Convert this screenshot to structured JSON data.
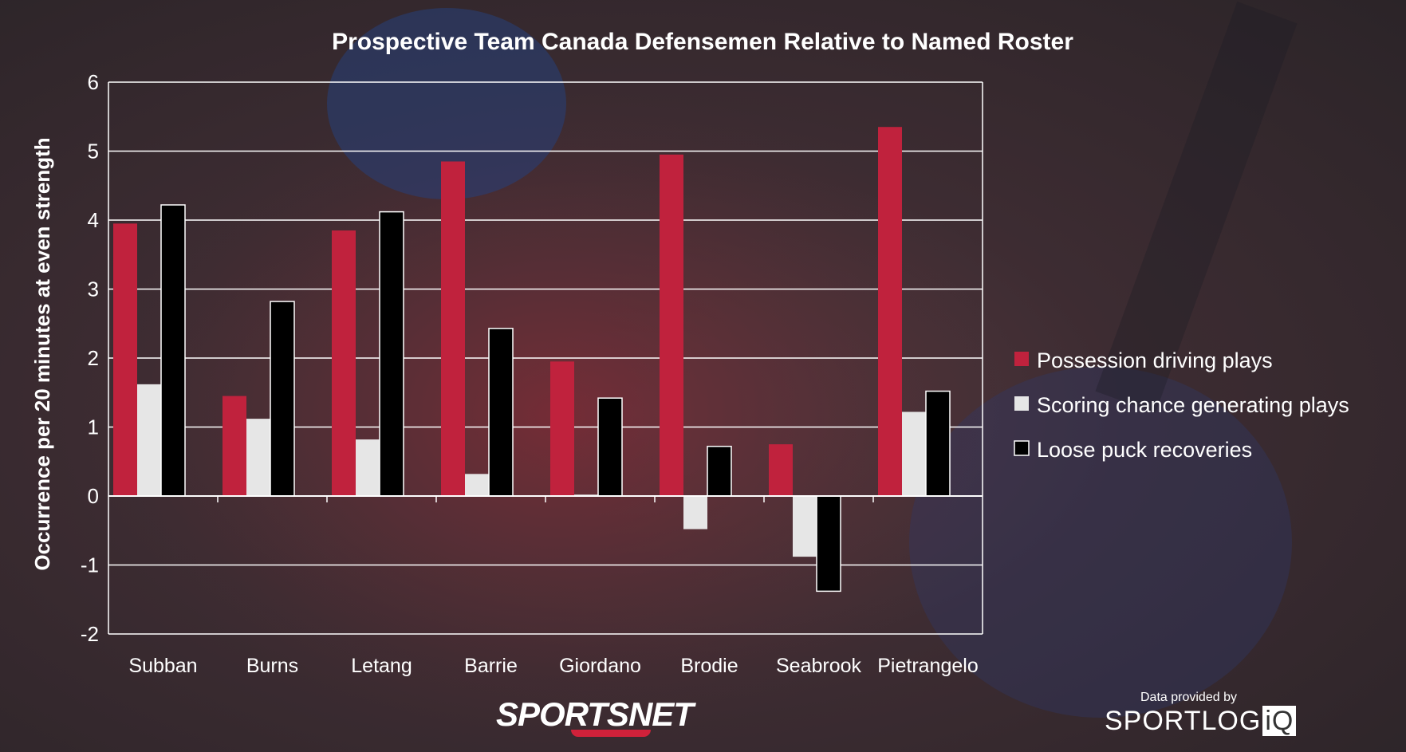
{
  "chart_data": {
    "type": "bar",
    "title": "Prospective Team Canada Defensemen Relative to Named Roster",
    "ylabel": "Occurrence per 20 minutes at even strength",
    "xlabel": "",
    "ylim": [
      -2,
      6
    ],
    "yticks": [
      6,
      5,
      4,
      3,
      2,
      1,
      0,
      -1,
      -2
    ],
    "grid": true,
    "legend_position": "right",
    "categories": [
      "Subban",
      "Burns",
      "Letang",
      "Barrie",
      "Giordano",
      "Brodie",
      "Seabrook",
      "Pietrangelo"
    ],
    "series": [
      {
        "name": "Possession driving plays",
        "color": "#c0223d",
        "values": [
          3.95,
          1.45,
          3.85,
          4.85,
          1.95,
          4.95,
          0.75,
          5.35
        ]
      },
      {
        "name": "Scoring chance generating plays",
        "color": "#e6e6e6",
        "values": [
          1.62,
          1.12,
          0.82,
          0.32,
          0.02,
          -0.48,
          -0.88,
          1.22
        ]
      },
      {
        "name": "Loose puck recoveries",
        "color": "#000000",
        "values": [
          4.22,
          2.82,
          4.12,
          2.43,
          1.42,
          0.72,
          -1.38,
          1.52
        ]
      }
    ]
  },
  "branding": {
    "network_logo": "SPORTSNET",
    "provider_label": "Data provided by",
    "provider_logo_main": "SPORTLOG",
    "provider_logo_suffix": "iQ"
  }
}
